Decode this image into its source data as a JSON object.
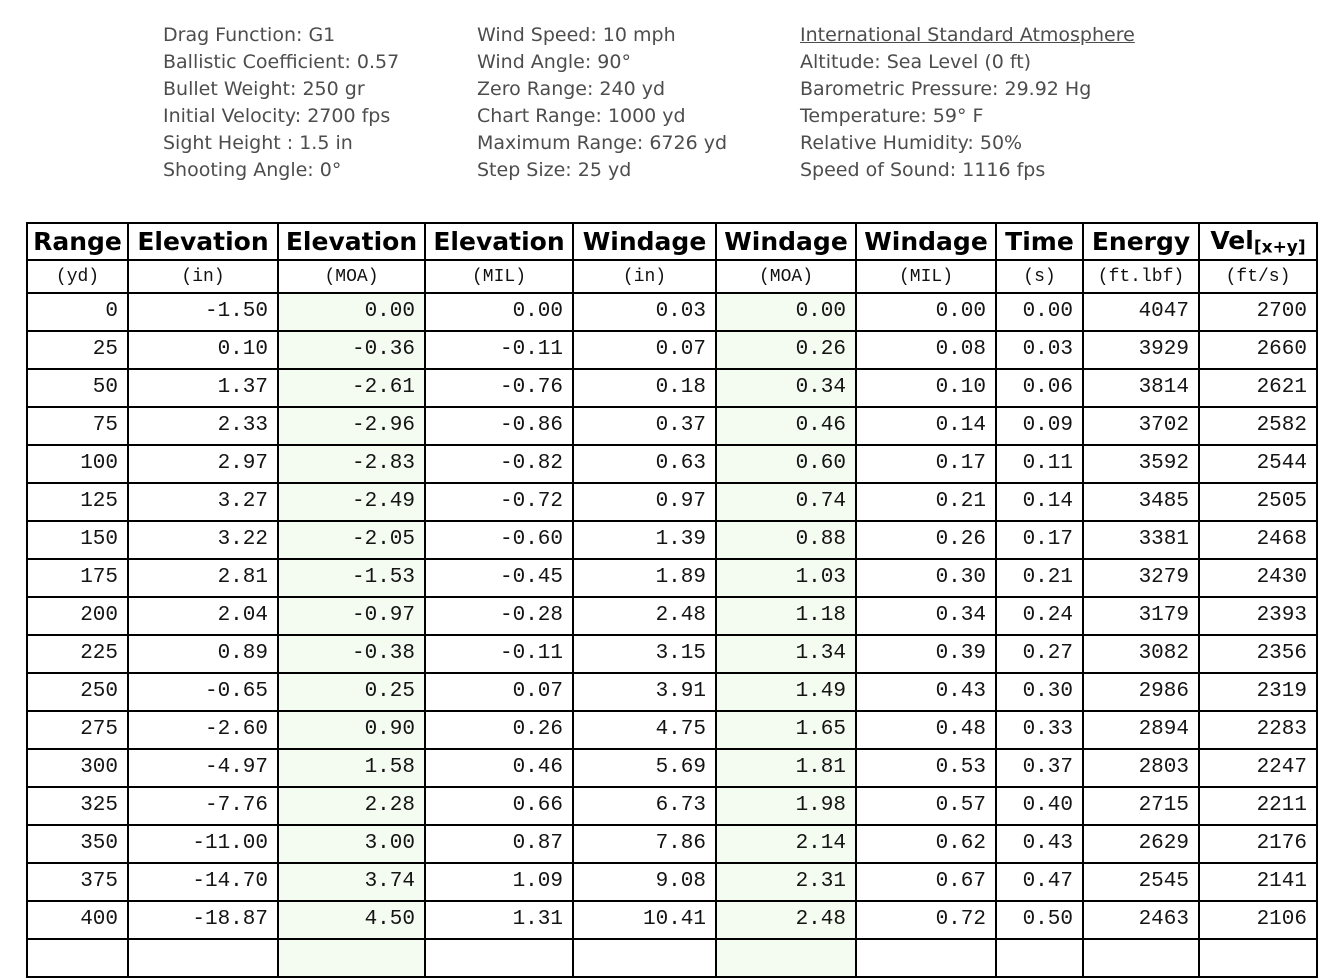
{
  "params": {
    "ballistics": {
      "lines": [
        "Drag Function: G1",
        "Ballistic Coefficient: 0.57",
        "Bullet Weight: 250 gr",
        "Initial Velocity: 2700 fps",
        "Sight Height : 1.5 in",
        "Shooting Angle: 0°"
      ]
    },
    "wind": {
      "lines": [
        "Wind Speed: 10 mph",
        "Wind Angle: 90°",
        "Zero Range: 240 yd",
        "Chart Range: 1000 yd",
        "Maximum Range: 6726 yd",
        "Step Size: 25 yd"
      ]
    },
    "atmosphere": {
      "title": "International Standard Atmosphere",
      "lines": [
        "Altitude: Sea Level (0 ft)",
        "Barometric Pressure: 29.92 Hg",
        "Temperature: 59° F",
        "Relative Humidity: 50%",
        "Speed of Sound: 1116 fps"
      ]
    }
  },
  "table": {
    "columns": [
      {
        "key": "range",
        "label": "Range",
        "unit": "(yd)"
      },
      {
        "key": "elevation-in",
        "label": "Elevation",
        "unit": "(in)"
      },
      {
        "key": "elevation-moa",
        "label": "Elevation",
        "unit": "(MOA)",
        "highlight": true
      },
      {
        "key": "elevation-mil",
        "label": "Elevation",
        "unit": "(MIL)"
      },
      {
        "key": "windage-in",
        "label": "Windage",
        "unit": "(in)"
      },
      {
        "key": "windage-moa",
        "label": "Windage",
        "unit": "(MOA)",
        "highlight": true
      },
      {
        "key": "windage-mil",
        "label": "Windage",
        "unit": "(MIL)"
      },
      {
        "key": "time",
        "label": "Time",
        "unit": "(s)"
      },
      {
        "key": "energy",
        "label": "Energy",
        "unit": "(ft.lbf)"
      },
      {
        "key": "velocity",
        "label": "Vel",
        "label_sub": "[x+y]",
        "unit": "(ft/s)"
      }
    ],
    "rows": [
      [
        "0",
        "-1.50",
        "0.00",
        "0.00",
        "0.03",
        "0.00",
        "0.00",
        "0.00",
        "4047",
        "2700"
      ],
      [
        "25",
        "0.10",
        "-0.36",
        "-0.11",
        "0.07",
        "0.26",
        "0.08",
        "0.03",
        "3929",
        "2660"
      ],
      [
        "50",
        "1.37",
        "-2.61",
        "-0.76",
        "0.18",
        "0.34",
        "0.10",
        "0.06",
        "3814",
        "2621"
      ],
      [
        "75",
        "2.33",
        "-2.96",
        "-0.86",
        "0.37",
        "0.46",
        "0.14",
        "0.09",
        "3702",
        "2582"
      ],
      [
        "100",
        "2.97",
        "-2.83",
        "-0.82",
        "0.63",
        "0.60",
        "0.17",
        "0.11",
        "3592",
        "2544"
      ],
      [
        "125",
        "3.27",
        "-2.49",
        "-0.72",
        "0.97",
        "0.74",
        "0.21",
        "0.14",
        "3485",
        "2505"
      ],
      [
        "150",
        "3.22",
        "-2.05",
        "-0.60",
        "1.39",
        "0.88",
        "0.26",
        "0.17",
        "3381",
        "2468"
      ],
      [
        "175",
        "2.81",
        "-1.53",
        "-0.45",
        "1.89",
        "1.03",
        "0.30",
        "0.21",
        "3279",
        "2430"
      ],
      [
        "200",
        "2.04",
        "-0.97",
        "-0.28",
        "2.48",
        "1.18",
        "0.34",
        "0.24",
        "3179",
        "2393"
      ],
      [
        "225",
        "0.89",
        "-0.38",
        "-0.11",
        "3.15",
        "1.34",
        "0.39",
        "0.27",
        "3082",
        "2356"
      ],
      [
        "250",
        "-0.65",
        "0.25",
        "0.07",
        "3.91",
        "1.49",
        "0.43",
        "0.30",
        "2986",
        "2319"
      ],
      [
        "275",
        "-2.60",
        "0.90",
        "0.26",
        "4.75",
        "1.65",
        "0.48",
        "0.33",
        "2894",
        "2283"
      ],
      [
        "300",
        "-4.97",
        "1.58",
        "0.46",
        "5.69",
        "1.81",
        "0.53",
        "0.37",
        "2803",
        "2247"
      ],
      [
        "325",
        "-7.76",
        "2.28",
        "0.66",
        "6.73",
        "1.98",
        "0.57",
        "0.40",
        "2715",
        "2211"
      ],
      [
        "350",
        "-11.00",
        "3.00",
        "0.87",
        "7.86",
        "2.14",
        "0.62",
        "0.43",
        "2629",
        "2176"
      ],
      [
        "375",
        "-14.70",
        "3.74",
        "1.09",
        "9.08",
        "2.31",
        "0.67",
        "0.47",
        "2545",
        "2141"
      ],
      [
        "400",
        "-18.87",
        "4.50",
        "1.31",
        "10.41",
        "2.48",
        "0.72",
        "0.50",
        "2463",
        "2106"
      ]
    ]
  },
  "colors": {
    "moa_column_bg": "#f4fbf0",
    "param_text": "#4d4d4d",
    "table_border": "#000000"
  }
}
